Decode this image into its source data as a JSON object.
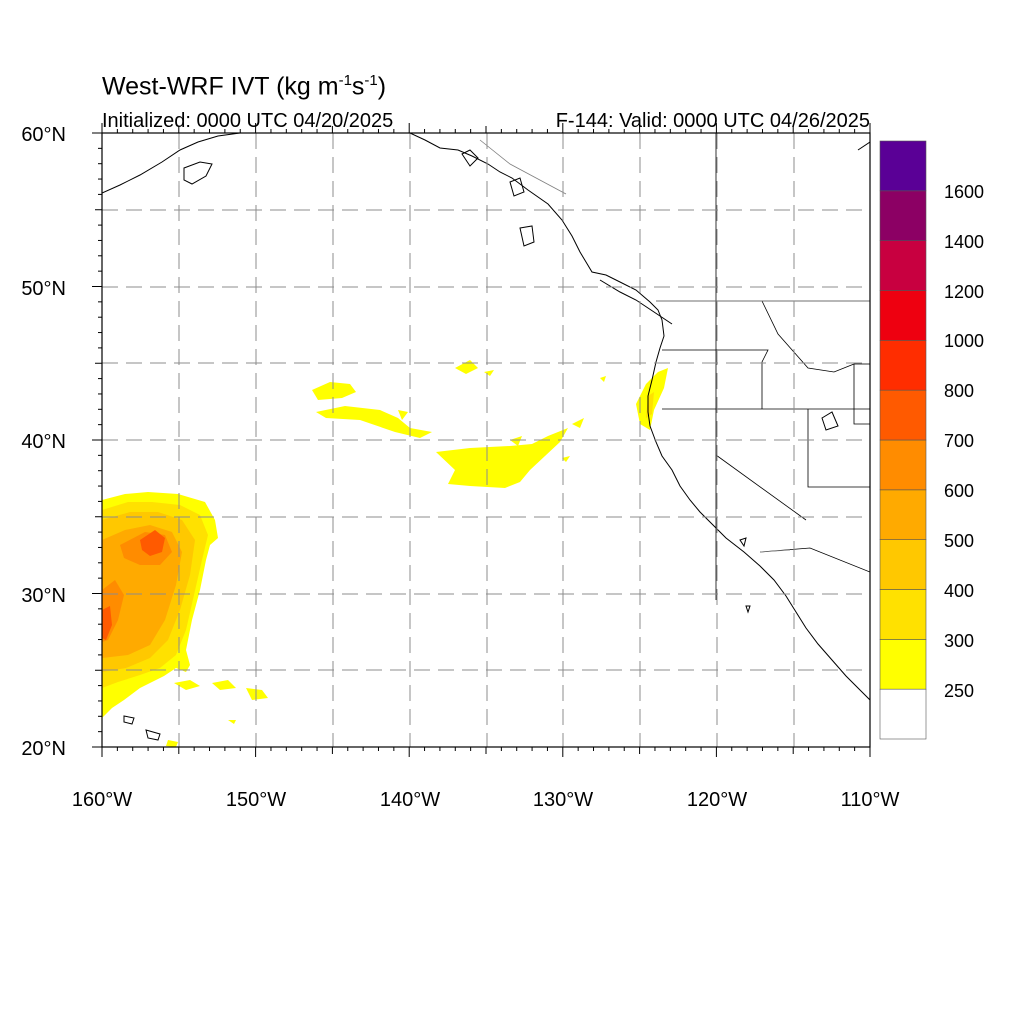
{
  "title": {
    "text": "West-WRF IVT (kg m",
    "exp1": "-1",
    "mid": "s",
    "exp2": "-1",
    "end": ")"
  },
  "init_label": "Initialized: 0000 UTC 04/20/2025",
  "valid_label": "F-144: Valid: 0000 UTC 04/26/2025",
  "lat_ticks": [
    "60°N",
    "50°N",
    "40°N",
    "30°N",
    "20°N"
  ],
  "lon_ticks": [
    "160°W",
    "150°W",
    "140°W",
    "130°W",
    "120°W",
    "110°W"
  ],
  "colorbar": {
    "labels": [
      "250",
      "300",
      "400",
      "500",
      "600",
      "700",
      "800",
      "1000",
      "1200",
      "1400",
      "1600"
    ],
    "colors": [
      "#ffffff",
      "#ffff00",
      "#ffe100",
      "#ffc800",
      "#ffaa00",
      "#ff8c00",
      "#ff5a00",
      "#ff2d00",
      "#ee0010",
      "#c80040",
      "#8c0064",
      "#5a0096"
    ]
  }
}
